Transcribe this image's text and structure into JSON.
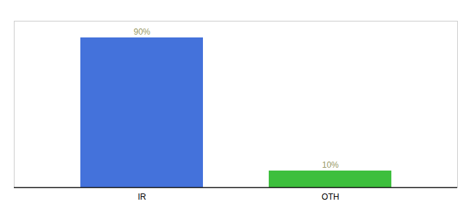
{
  "chart_data": {
    "type": "bar",
    "categories": [
      "IR",
      "OTH"
    ],
    "values": [
      90,
      10
    ],
    "value_labels": [
      "90%",
      "10%"
    ],
    "colors": [
      "#4472db",
      "#3dbf3d"
    ],
    "ylim": [
      0,
      100
    ],
    "data_labels": true,
    "tick_labels": "x"
  }
}
